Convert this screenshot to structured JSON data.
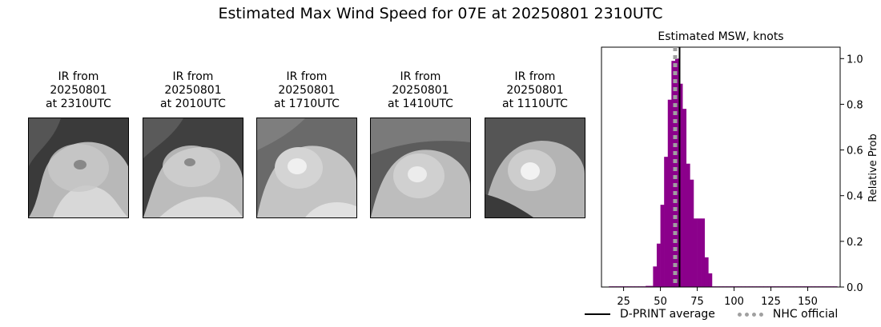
{
  "suptitle": "Estimated Max Wind Speed for 07E at 20250801 2310UTC",
  "ir_panels": [
    {
      "title": "IR from\n20250801\nat 2310UTC"
    },
    {
      "title": "IR from\n20250801\nat 2010UTC"
    },
    {
      "title": "IR from\n20250801\nat 1710UTC"
    },
    {
      "title": "IR from\n20250801\nat 1410UTC"
    },
    {
      "title": "IR from\n20250801\nat 1110UTC"
    }
  ],
  "chart_data": {
    "type": "bar",
    "title": "Estimated MSW, knots",
    "xlabel": "",
    "ylabel": "Relative Prob",
    "xlim": [
      10,
      172
    ],
    "ylim": [
      0,
      1.05
    ],
    "xticks": [
      25,
      50,
      75,
      100,
      125,
      150
    ],
    "yticks": [
      0.0,
      0.2,
      0.4,
      0.6,
      0.8,
      1.0
    ],
    "y_axis_side": "right",
    "bin_width": 2.5,
    "bins": [
      {
        "x": 15,
        "y": 0.003
      },
      {
        "x": 17.5,
        "y": 0.003
      },
      {
        "x": 20,
        "y": 0.003
      },
      {
        "x": 22.5,
        "y": 0.003
      },
      {
        "x": 25,
        "y": 0.003
      },
      {
        "x": 27.5,
        "y": 0.003
      },
      {
        "x": 30,
        "y": 0.003
      },
      {
        "x": 32.5,
        "y": 0.003
      },
      {
        "x": 35,
        "y": 0.003
      },
      {
        "x": 37.5,
        "y": 0.003
      },
      {
        "x": 40,
        "y": 0.005
      },
      {
        "x": 42.5,
        "y": 0.005
      },
      {
        "x": 45,
        "y": 0.09
      },
      {
        "x": 47.5,
        "y": 0.19
      },
      {
        "x": 50,
        "y": 0.36
      },
      {
        "x": 52.5,
        "y": 0.57
      },
      {
        "x": 55,
        "y": 0.82
      },
      {
        "x": 57.5,
        "y": 0.99
      },
      {
        "x": 60,
        "y": 1.0
      },
      {
        "x": 62.5,
        "y": 0.89
      },
      {
        "x": 65,
        "y": 0.78
      },
      {
        "x": 67.5,
        "y": 0.54
      },
      {
        "x": 70,
        "y": 0.47
      },
      {
        "x": 72.5,
        "y": 0.3
      },
      {
        "x": 75,
        "y": 0.3
      },
      {
        "x": 77.5,
        "y": 0.3
      },
      {
        "x": 80,
        "y": 0.13
      },
      {
        "x": 82.5,
        "y": 0.06
      },
      {
        "x": 85,
        "y": 0.003
      },
      {
        "x": 87.5,
        "y": 0.003
      },
      {
        "x": 90,
        "y": 0.003
      },
      {
        "x": 92.5,
        "y": 0.003
      },
      {
        "x": 95,
        "y": 0.003
      },
      {
        "x": 97.5,
        "y": 0.003
      },
      {
        "x": 100,
        "y": 0.003
      },
      {
        "x": 102.5,
        "y": 0.003
      },
      {
        "x": 105,
        "y": 0.003
      },
      {
        "x": 107.5,
        "y": 0.003
      },
      {
        "x": 110,
        "y": 0.003
      },
      {
        "x": 112.5,
        "y": 0.003
      },
      {
        "x": 115,
        "y": 0.003
      },
      {
        "x": 117.5,
        "y": 0.003
      },
      {
        "x": 120,
        "y": 0.003
      },
      {
        "x": 122.5,
        "y": 0.003
      },
      {
        "x": 125,
        "y": 0.003
      },
      {
        "x": 127.5,
        "y": 0.003
      },
      {
        "x": 130,
        "y": 0.003
      },
      {
        "x": 132.5,
        "y": 0.003
      },
      {
        "x": 135,
        "y": 0.003
      },
      {
        "x": 137.5,
        "y": 0.003
      },
      {
        "x": 140,
        "y": 0.003
      },
      {
        "x": 142.5,
        "y": 0.003
      },
      {
        "x": 145,
        "y": 0.003
      },
      {
        "x": 147.5,
        "y": 0.003
      },
      {
        "x": 150,
        "y": 0.003
      },
      {
        "x": 152.5,
        "y": 0.003
      },
      {
        "x": 155,
        "y": 0.003
      },
      {
        "x": 157.5,
        "y": 0.003
      },
      {
        "x": 160,
        "y": 0.003
      },
      {
        "x": 162.5,
        "y": 0.003
      },
      {
        "x": 165,
        "y": 0.003
      },
      {
        "x": 167.5,
        "y": 0.003
      }
    ],
    "bar_color": "#8b008b",
    "dprint_average": 63,
    "nhc_official": 60,
    "legend": [
      {
        "label": "D-PRINT average",
        "style": "solid",
        "color": "#000000"
      },
      {
        "label": "NHC official",
        "style": "dotted",
        "color": "#a0a0a0"
      }
    ],
    "legend_placement": "bottom"
  }
}
